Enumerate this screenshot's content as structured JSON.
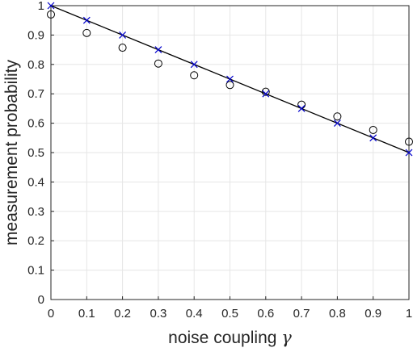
{
  "chart_data": {
    "type": "scatter",
    "xlabel": "noise coupling",
    "xlabel_symbol": "γ",
    "ylabel": "measurement probability",
    "xlim": [
      0,
      1
    ],
    "ylim": [
      0,
      1
    ],
    "x_ticks": [
      "0",
      "0.1",
      "0.2",
      "0.3",
      "0.4",
      "0.5",
      "0.6",
      "0.7",
      "0.8",
      "0.9",
      "1"
    ],
    "y_ticks": [
      "0",
      "0.1",
      "0.2",
      "0.3",
      "0.4",
      "0.5",
      "0.6",
      "0.7",
      "0.8",
      "0.9",
      "1"
    ],
    "grid": true,
    "series": [
      {
        "marker": "line",
        "color": "#000000",
        "x": [
          0,
          1
        ],
        "y": [
          1.0,
          0.5
        ]
      },
      {
        "marker": "circle",
        "color": "#000000",
        "x": [
          0,
          0.1,
          0.2,
          0.3,
          0.4,
          0.5,
          0.6,
          0.7,
          0.8,
          0.9,
          1.0
        ],
        "y": [
          0.97,
          0.907,
          0.857,
          0.803,
          0.763,
          0.73,
          0.707,
          0.663,
          0.623,
          0.577,
          0.537
        ]
      },
      {
        "marker": "x",
        "color": "#0000cc",
        "x": [
          0,
          0.1,
          0.2,
          0.3,
          0.4,
          0.5,
          0.6,
          0.7,
          0.8,
          0.9,
          1.0
        ],
        "y": [
          1.0,
          0.95,
          0.9,
          0.85,
          0.8,
          0.75,
          0.7,
          0.65,
          0.6,
          0.55,
          0.5
        ]
      }
    ]
  }
}
